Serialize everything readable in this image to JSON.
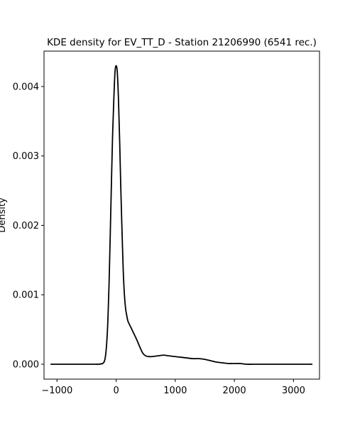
{
  "chart_data": {
    "type": "line",
    "title": "KDE density for EV_TT_D - Station 21206990 (6541 rec.)",
    "xlabel": "",
    "ylabel": "Density",
    "xlim": [
      -1220,
      3440
    ],
    "ylim": [
      -0.000215,
      0.00451
    ],
    "x_ticks": [
      -1000,
      0,
      1000,
      2000,
      3000
    ],
    "x_tick_labels": [
      "−1000",
      "0",
      "1000",
      "2000",
      "3000"
    ],
    "y_ticks": [
      0.0,
      0.001,
      0.002,
      0.003,
      0.004
    ],
    "y_tick_labels": [
      "0.000",
      "0.001",
      "0.002",
      "0.003",
      "0.004"
    ],
    "grid": false,
    "legend": "none",
    "line_color": "#000000",
    "series": [
      {
        "x": [
          -1110,
          -900,
          -600,
          -400,
          -300,
          -230,
          -200,
          -180,
          -160,
          -140,
          -120,
          -100,
          -80,
          -60,
          -40,
          -20,
          0,
          20,
          40,
          60,
          80,
          100,
          120,
          140,
          160,
          180,
          200,
          250,
          300,
          350,
          400,
          450,
          500,
          550,
          600,
          700,
          800,
          900,
          1000,
          1100,
          1200,
          1300,
          1400,
          1500,
          1600,
          1700,
          1800,
          1900,
          2000,
          2100,
          2200,
          2400,
          2600,
          3000,
          3320
        ],
        "y": [
          0.0,
          0.0,
          0.0,
          0.0,
          0.0,
          1e-05,
          4e-05,
          0.00012,
          0.0003,
          0.00062,
          0.00115,
          0.00185,
          0.0026,
          0.0033,
          0.0038,
          0.0042,
          0.0043,
          0.0042,
          0.0038,
          0.0032,
          0.0025,
          0.0019,
          0.00135,
          0.001,
          0.0008,
          0.0007,
          0.00062,
          0.00053,
          0.00044,
          0.00035,
          0.00025,
          0.00016,
          0.00012,
          0.00011,
          0.00011,
          0.00012,
          0.00013,
          0.00012,
          0.00011,
          0.0001,
          9e-05,
          8e-05,
          8e-05,
          7e-05,
          5e-05,
          3e-05,
          2e-05,
          1e-05,
          1e-05,
          1e-05,
          0.0,
          0.0,
          0.0,
          0.0,
          0.0
        ]
      }
    ]
  }
}
